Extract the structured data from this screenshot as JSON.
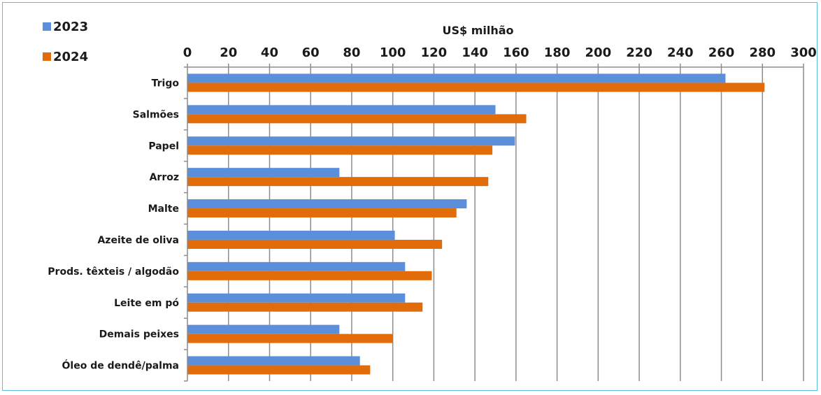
{
  "chart_data": {
    "type": "bar",
    "orientation": "horizontal",
    "title": "",
    "xlabel": "US$ milhão",
    "ylabel": "",
    "xlim": [
      0,
      300
    ],
    "x_ticks": [
      0,
      20,
      40,
      60,
      80,
      100,
      120,
      140,
      160,
      180,
      200,
      220,
      240,
      260,
      280,
      300
    ],
    "x_axis_position": "top",
    "grid": true,
    "legend_position": "top-left",
    "categories": [
      "Trigo",
      "Salmões",
      "Papel",
      "Arroz",
      "Malte",
      "Azeite de oliva",
      "Prods. têxteis / algodão",
      "Leite em pó",
      "Demais peixes",
      "Óleo de dendê/palma"
    ],
    "series": [
      {
        "name": "2023",
        "color": "#5b8fdb",
        "values": [
          262,
          150,
          159.5,
          74,
          136,
          101,
          106,
          106,
          74,
          84
        ]
      },
      {
        "name": "2024",
        "color": "#e36c0a",
        "values": [
          281,
          165,
          148.5,
          146.5,
          131,
          124,
          119,
          114.5,
          100,
          89
        ]
      }
    ]
  }
}
